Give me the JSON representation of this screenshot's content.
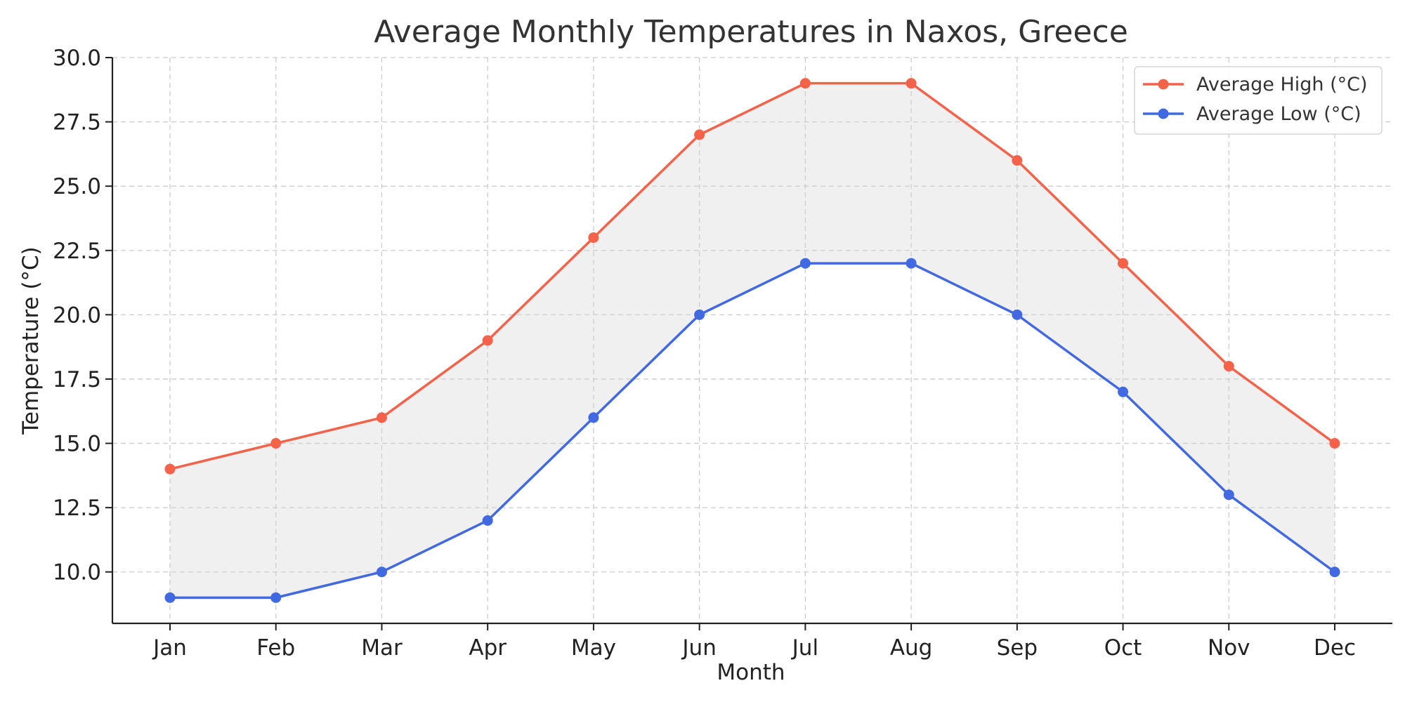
{
  "chart_data": {
    "type": "line",
    "title": "Average Monthly Temperatures in Naxos, Greece",
    "xlabel": "Month",
    "ylabel": "Temperature (°C)",
    "categories": [
      "Jan",
      "Feb",
      "Mar",
      "Apr",
      "May",
      "Jun",
      "Jul",
      "Aug",
      "Sep",
      "Oct",
      "Nov",
      "Dec"
    ],
    "series": [
      {
        "name": "Average High (°C)",
        "color": "#f4624a",
        "values": [
          14,
          15,
          16,
          19,
          23,
          27,
          29,
          29,
          26,
          22,
          18,
          15
        ]
      },
      {
        "name": "Average Low (°C)",
        "color": "#4169e1",
        "values": [
          9,
          9,
          10,
          12,
          16,
          20,
          22,
          22,
          20,
          17,
          13,
          10
        ]
      }
    ],
    "fill_between": {
      "color": "#d3d3d3",
      "opacity": 0.35
    },
    "ylim": [
      8,
      30
    ],
    "yticks": [
      "10.0",
      "12.5",
      "15.0",
      "17.5",
      "20.0",
      "22.5",
      "25.0",
      "27.5",
      "30.0"
    ],
    "grid": true,
    "legend_position": "top-right"
  }
}
